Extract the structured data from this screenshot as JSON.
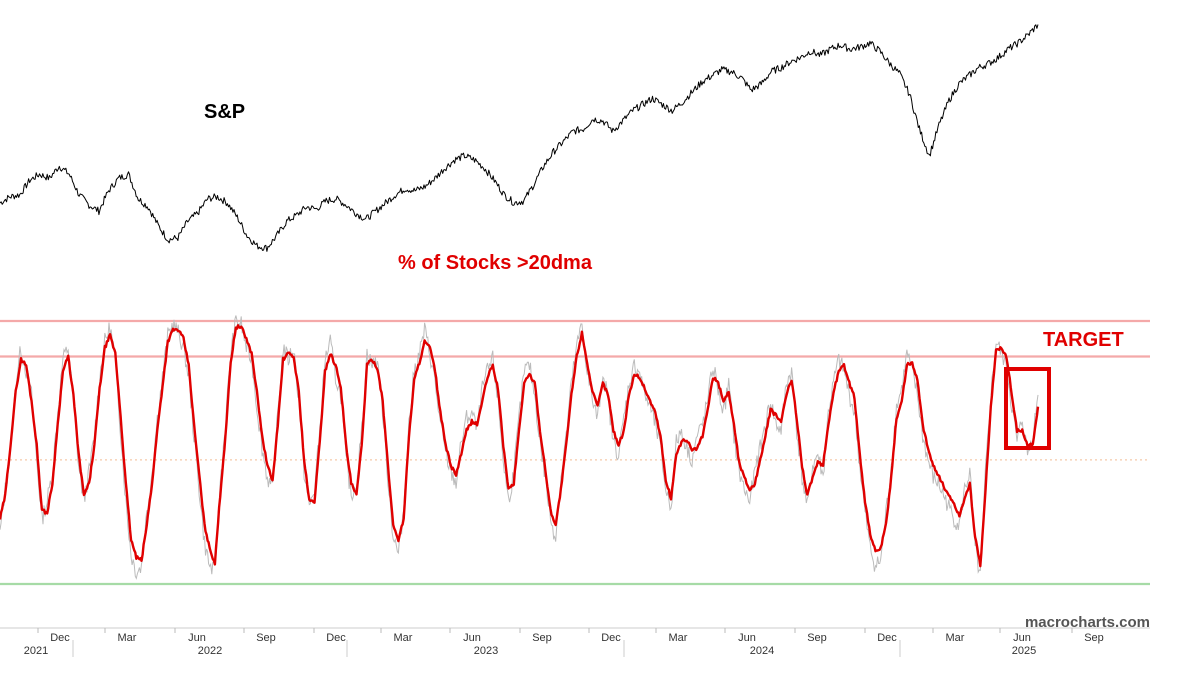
{
  "chart_data": [
    {
      "type": "line",
      "label": "S&P",
      "x_start": "2021-09-13",
      "x_end": "2025-07-03",
      "series": [
        {
          "name": "S&P",
          "color": "#000000",
          "values": [
            0.22,
            0.25,
            0.26,
            0.33,
            0.36,
            0.34,
            0.4,
            0.36,
            0.26,
            0.21,
            0.18,
            0.28,
            0.34,
            0.36,
            0.24,
            0.2,
            0.11,
            0.04,
            0.05,
            0.13,
            0.17,
            0.24,
            0.25,
            0.22,
            0.15,
            0.06,
            0.01,
            0.0,
            0.06,
            0.13,
            0.16,
            0.2,
            0.19,
            0.23,
            0.24,
            0.21,
            0.17,
            0.14,
            0.18,
            0.22,
            0.26,
            0.29,
            0.28,
            0.3,
            0.34,
            0.39,
            0.43,
            0.45,
            0.43,
            0.39,
            0.33,
            0.26,
            0.22,
            0.23,
            0.31,
            0.4,
            0.47,
            0.52,
            0.57,
            0.58,
            0.63,
            0.62,
            0.57,
            0.62,
            0.67,
            0.7,
            0.73,
            0.7,
            0.67,
            0.71,
            0.76,
            0.81,
            0.84,
            0.87,
            0.86,
            0.83,
            0.77,
            0.8,
            0.86,
            0.88,
            0.91,
            0.93,
            0.96,
            0.94,
            0.97,
            0.99,
            0.97,
            0.98,
            1.0,
            0.96,
            0.9,
            0.85,
            0.75,
            0.58,
            0.45,
            0.6,
            0.72,
            0.8,
            0.84,
            0.88,
            0.9,
            0.93,
            0.97,
            1.0,
            1.04,
            1.09
          ]
        }
      ]
    },
    {
      "type": "line",
      "label": "% of Stocks >20dma",
      "x_start": "2021-09-13",
      "x_end": "2025-07-03",
      "ylim": [
        0,
        100
      ],
      "x_ticks": [
        "Dec",
        "Mar",
        "Jun",
        "Sep",
        "Dec",
        "Mar",
        "Jun",
        "Sep",
        "Dec",
        "Mar",
        "Jun",
        "Sep",
        "Dec",
        "Mar",
        "Jun",
        "Sep"
      ],
      "year_labels": [
        "2021",
        "2022",
        "2023",
        "2024",
        "2025"
      ],
      "reference_lines": [
        {
          "value": 97,
          "color": "#f4a9a9"
        },
        {
          "value": 85,
          "color": "#f4a9a9"
        },
        {
          "value": 50,
          "color": "#f6c8a8",
          "style": "dotted"
        },
        {
          "value": 8,
          "color": "#a6dba6"
        }
      ],
      "series": [
        {
          "name": "% >20dma (smoothed)",
          "color": "#e00000",
          "values": [
            30,
            38,
            55,
            73,
            84,
            82,
            70,
            55,
            33,
            32,
            42,
            62,
            80,
            85,
            72,
            52,
            38,
            42,
            55,
            74,
            88,
            92,
            86,
            65,
            42,
            23,
            17,
            16,
            28,
            42,
            60,
            75,
            90,
            94,
            94,
            91,
            82,
            62,
            45,
            28,
            20,
            15,
            38,
            58,
            83,
            95,
            95,
            91,
            86,
            73,
            58,
            48,
            43,
            62,
            84,
            86,
            85,
            73,
            50,
            36,
            36,
            56,
            80,
            86,
            82,
            75,
            55,
            42,
            38,
            55,
            82,
            84,
            81,
            70,
            48,
            28,
            23,
            30,
            58,
            77,
            83,
            90,
            88,
            80,
            66,
            55,
            48,
            45,
            52,
            60,
            63,
            62,
            70,
            78,
            82,
            74,
            55,
            40,
            42,
            60,
            76,
            79,
            76,
            60,
            47,
            33,
            28,
            40,
            55,
            72,
            85,
            93,
            83,
            73,
            68,
            76,
            72,
            60,
            55,
            60,
            72,
            79,
            78,
            74,
            70,
            66,
            58,
            43,
            37,
            52,
            56,
            57,
            53,
            54,
            58,
            67,
            78,
            76,
            70,
            73,
            62,
            49,
            44,
            40,
            42,
            50,
            58,
            67,
            65,
            63,
            72,
            77,
            64,
            48,
            38,
            44,
            49,
            48,
            62,
            73,
            80,
            82,
            76,
            71,
            52,
            36,
            25,
            19,
            20,
            28,
            44,
            64,
            70,
            82,
            83,
            77,
            62,
            54,
            48,
            45,
            41,
            38,
            35,
            31,
            37,
            42,
            24,
            14,
            40,
            68,
            87,
            88,
            85,
            72,
            60,
            60,
            55,
            55,
            68
          ]
        },
        {
          "name": "% >20dma (daily)",
          "color": "#bbbbbb",
          "values": [
            25,
            40,
            52,
            76,
            88,
            80,
            72,
            50,
            30,
            36,
            46,
            66,
            84,
            88,
            70,
            48,
            36,
            46,
            58,
            78,
            90,
            95,
            84,
            60,
            36,
            18,
            12,
            14,
            32,
            46,
            64,
            78,
            92,
            96,
            93,
            88,
            78,
            58,
            40,
            22,
            14,
            12,
            42,
            62,
            86,
            97,
            96,
            88,
            84,
            68,
            54,
            44,
            40,
            66,
            88,
            84,
            88,
            70,
            46,
            34,
            40,
            60,
            84,
            90,
            78,
            72,
            50,
            38,
            42,
            60,
            86,
            82,
            84,
            66,
            44,
            24,
            18,
            34,
            62,
            80,
            86,
            94,
            86,
            76,
            62,
            52,
            46,
            42,
            56,
            64,
            66,
            60,
            74,
            80,
            84,
            70,
            50,
            36,
            46,
            64,
            80,
            82,
            72,
            56,
            44,
            30,
            24,
            44,
            58,
            76,
            88,
            96,
            80,
            70,
            64,
            80,
            70,
            56,
            52,
            64,
            76,
            82,
            80,
            72,
            68,
            62,
            54,
            40,
            34,
            56,
            60,
            54,
            50,
            58,
            62,
            70,
            82,
            74,
            66,
            76,
            58,
            46,
            40,
            36,
            46,
            54,
            62,
            70,
            62,
            60,
            76,
            80,
            60,
            44,
            34,
            48,
            52,
            44,
            66,
            76,
            84,
            80,
            72,
            66,
            48,
            32,
            20,
            14,
            16,
            32,
            48,
            68,
            74,
            86,
            80,
            72,
            58,
            50,
            44,
            42,
            38,
            34,
            30,
            28,
            40,
            46,
            20,
            10,
            46,
            72,
            90,
            86,
            82,
            68,
            56,
            64,
            52,
            58,
            72
          ]
        }
      ]
    }
  ],
  "annotations": {
    "sp_label": "S&P",
    "breadth_label": "% of Stocks >20dma",
    "target_label": "TARGET",
    "watermark": "macrocharts.com"
  },
  "colors": {
    "price_line": "#000000",
    "breadth_line": "#e00000",
    "breadth_raw": "#bbbbbb",
    "target_box": "#e00000",
    "watermark": "#555555"
  }
}
